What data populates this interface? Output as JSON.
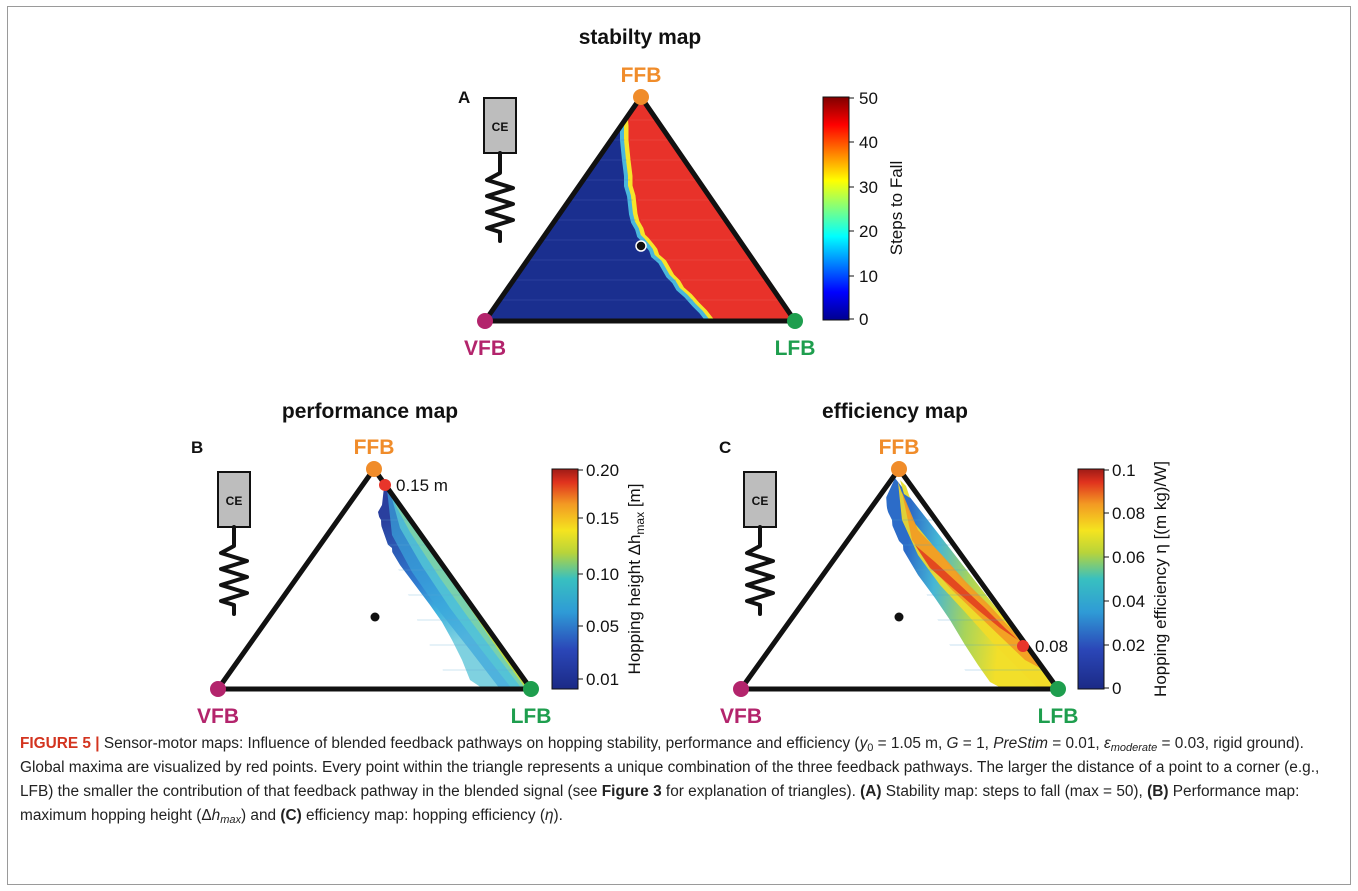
{
  "panels": [
    {
      "letter": "A",
      "title": "stabilty map",
      "corners": {
        "top": "FFB",
        "left": "VFB",
        "right": "LFB"
      },
      "colorbar": {
        "label": "Steps to Fall",
        "ticks": [
          "50",
          "40",
          "30",
          "20",
          "10",
          "0"
        ],
        "range": [
          0,
          50
        ]
      },
      "actuator_label": "CE",
      "max_label": ""
    },
    {
      "letter": "B",
      "title": "performance map",
      "corners": {
        "top": "FFB",
        "left": "VFB",
        "right": "LFB"
      },
      "colorbar": {
        "label_prefix": "Hopping height Δh",
        "label_sub": "max",
        "label_suffix": " [m]",
        "ticks": [
          "0.20",
          "0.15",
          "0.10",
          "0.05",
          "0.01"
        ],
        "range": [
          0.01,
          0.2
        ]
      },
      "actuator_label": "CE",
      "max_label": "0.15 m"
    },
    {
      "letter": "C",
      "title": "efficiency map",
      "corners": {
        "top": "FFB",
        "left": "VFB",
        "right": "LFB"
      },
      "colorbar": {
        "label": "Hopping efficiency η [(m kg)/W]",
        "ticks": [
          "0.1",
          "0.08",
          "0.06",
          "0.04",
          "0.02",
          "0"
        ],
        "range": [
          0,
          0.1
        ]
      },
      "actuator_label": "CE",
      "max_label": "0.08"
    }
  ],
  "colors": {
    "ffb": "#f08c2a",
    "vfb": "#b3246c",
    "lfb": "#1e9e4e",
    "maximum": "#e8352b",
    "caption_label": "#d3341f"
  },
  "caption": {
    "label": "FIGURE 5 |",
    "t1": " Sensor-motor maps: Influence of blended feedback pathways on hopping stability, performance and efficiency (",
    "y0_var": "y",
    "y0_sub": "0",
    "t2": " = 1.05 m, ",
    "g_var": "G",
    "t3": " = 1, ",
    "prestim_var": "PreStim",
    "t4": " = 0.01, ",
    "eps_var": "ε",
    "eps_sub": "moderate",
    "t5": " = 0.03, rigid ground). Global maxima are visualized by red points. Every point within the triangle represents a unique combination of the three feedback pathways. The larger the distance of a point to a corner (e.g., LFB) the smaller the contribution of that feedback pathway in the blended signal (see ",
    "fig3_ref": "Figure 3",
    "t6": " for explanation of triangles). ",
    "a_ref": "(A)",
    "t7": " Stability map: steps to fall (max = 50), ",
    "b_ref": "(B)",
    "t8": " Performance map: maximum hopping height (Δ",
    "h_var": "h",
    "h_sub": "max",
    "t9": ") and ",
    "c_ref": "(C)",
    "t10": " efficiency map: hopping efficiency (",
    "eta_var": "η",
    "t11": ")."
  }
}
